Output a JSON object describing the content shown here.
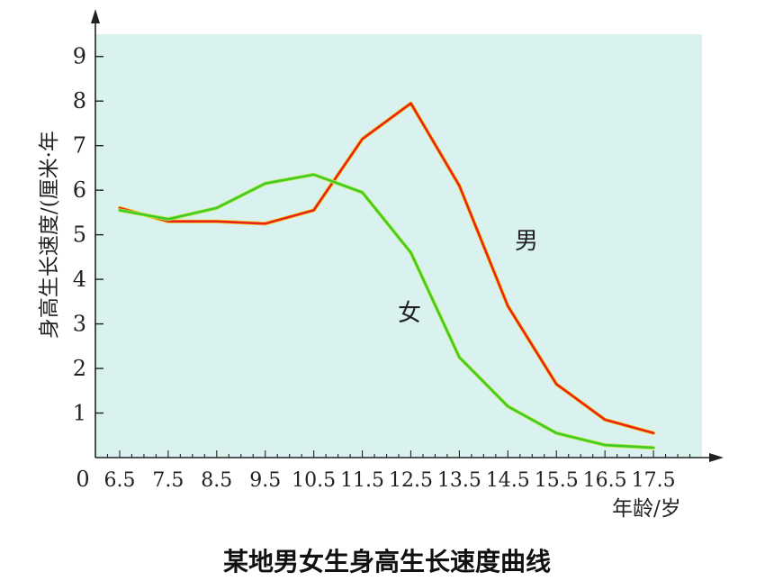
{
  "caption": "某地男女生身高生长速度曲线",
  "chart_data": {
    "type": "line",
    "title": "某地男女生身高生长速度曲线",
    "xlabel": "年龄/岁",
    "ylabel": "身高生长速度/(厘米·年",
    "origin_label": "0",
    "categories": [
      "6.5",
      "7.5",
      "8.5",
      "9.5",
      "10.5",
      "11.5",
      "12.5",
      "13.5",
      "14.5",
      "15.5",
      "16.5",
      "17.5"
    ],
    "x": [
      6.5,
      7.5,
      8.5,
      9.5,
      10.5,
      11.5,
      12.5,
      13.5,
      14.5,
      15.5,
      16.5,
      17.5
    ],
    "yticks": [
      1,
      2,
      3,
      4,
      5,
      6,
      7,
      8,
      9
    ],
    "ylim": [
      0,
      9.5
    ],
    "xlim": [
      6.0,
      18.5
    ],
    "grid": false,
    "background_color": "#d9f2f0",
    "series": [
      {
        "name": "男",
        "color": "#e8231c",
        "values": [
          5.6,
          5.3,
          5.3,
          5.25,
          5.55,
          7.15,
          7.95,
          6.1,
          3.4,
          1.65,
          0.85,
          0.55
        ]
      },
      {
        "name": "女",
        "color": "#3dcc2a",
        "values": [
          5.55,
          5.35,
          5.6,
          6.15,
          6.35,
          5.95,
          4.6,
          2.25,
          1.15,
          0.55,
          0.28,
          0.22
        ]
      }
    ]
  }
}
